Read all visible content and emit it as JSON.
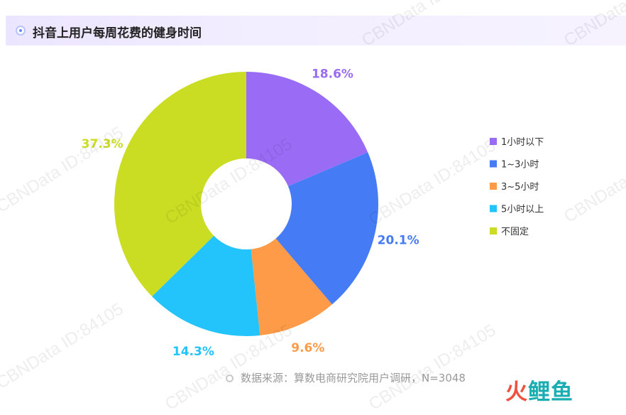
{
  "title": "抖音上用户每周花费的健身时间",
  "watermark_text": "CBNData ID:84105",
  "source": "数据来源：算数电商研究院用户调研，N=3048",
  "logo": {
    "part1": "火",
    "part2": "鲤鱼"
  },
  "chart_data": {
    "type": "pie",
    "donut": true,
    "categories": [
      "1小时以下",
      "1~3小时",
      "3~5小时",
      "5小时以上",
      "不固定"
    ],
    "values": [
      18.6,
      20.1,
      9.6,
      14.3,
      37.3
    ],
    "labels": [
      "18.6%",
      "20.1%",
      "9.6%",
      "14.3%",
      "37.3%"
    ],
    "colors": [
      "#9a6cf6",
      "#457cf5",
      "#fd9b48",
      "#23c3fc",
      "#cadd22"
    ],
    "legend_position": "right",
    "start_angle": "12 o'clock",
    "direction": "clockwise"
  }
}
